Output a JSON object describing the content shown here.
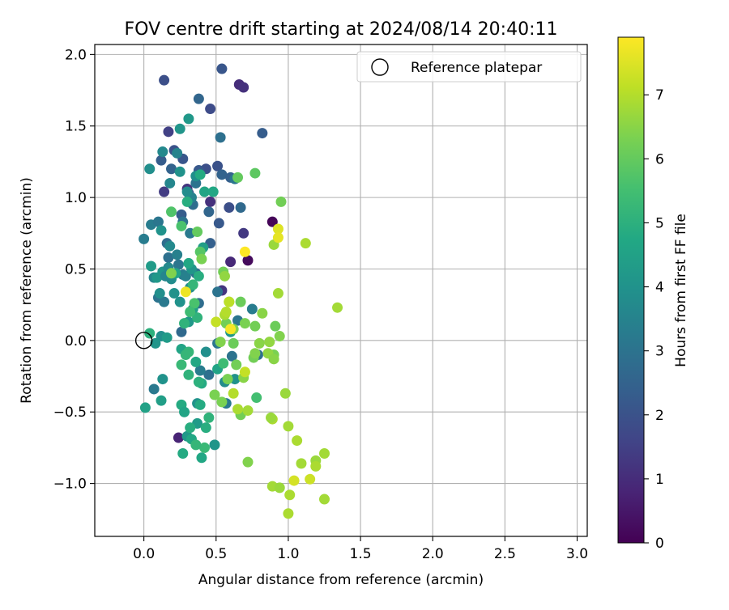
{
  "chart_data": {
    "type": "scatter",
    "title": "FOV centre drift starting at 2024/08/14 20:40:11",
    "xlabel": "Angular distance from reference (arcmin)",
    "ylabel": "Rotation from reference (arcmin)",
    "xlim": [
      -0.34,
      3.07
    ],
    "ylim": [
      -1.37,
      2.07
    ],
    "xticks": [
      0.0,
      0.5,
      1.0,
      1.5,
      2.0,
      2.5,
      3.0
    ],
    "xtick_labels": [
      "0.0",
      "0.5",
      "1.0",
      "1.5",
      "2.0",
      "2.5",
      "3.0"
    ],
    "yticks": [
      -1.0,
      -0.5,
      0.0,
      0.5,
      1.0,
      1.5,
      2.0
    ],
    "ytick_labels": [
      "−1.0",
      "−0.5",
      "0.0",
      "0.5",
      "1.0",
      "1.5",
      "2.0"
    ],
    "grid": true,
    "legend": {
      "placement": "top-right",
      "entries": [
        "Reference platepar"
      ]
    },
    "reference_point": {
      "x": 0.0,
      "y": 0.0
    },
    "colorbar": {
      "label": "Hours from first FF file",
      "range": [
        0,
        7.9
      ],
      "ticks": [
        0,
        1,
        2,
        3,
        4,
        5,
        6,
        7
      ],
      "tick_labels": [
        "0",
        "1",
        "2",
        "3",
        "4",
        "5",
        "6",
        "7"
      ],
      "colormap": "viridis"
    },
    "points": [
      {
        "x": 0.89,
        "y": 0.83,
        "h": 0.1
      },
      {
        "x": 0.72,
        "y": 0.56,
        "h": 0.2
      },
      {
        "x": 0.24,
        "y": -0.68,
        "h": 0.8
      },
      {
        "x": 0.66,
        "y": 1.79,
        "h": 1.0
      },
      {
        "x": 0.69,
        "y": 1.77,
        "h": 1.1
      },
      {
        "x": 0.6,
        "y": 0.55,
        "h": 0.9
      },
      {
        "x": 0.54,
        "y": 0.35,
        "h": 1.2
      },
      {
        "x": 0.46,
        "y": 0.97,
        "h": 1.1
      },
      {
        "x": 0.69,
        "y": 0.75,
        "h": 1.3
      },
      {
        "x": 0.14,
        "y": 1.04,
        "h": 1.4
      },
      {
        "x": 0.3,
        "y": 1.06,
        "h": 1.2
      },
      {
        "x": 0.17,
        "y": 1.46,
        "h": 1.5
      },
      {
        "x": 0.14,
        "y": 1.82,
        "h": 1.9
      },
      {
        "x": 0.54,
        "y": 1.9,
        "h": 2.1
      },
      {
        "x": 0.46,
        "y": 1.62,
        "h": 1.8
      },
      {
        "x": 0.82,
        "y": 1.45,
        "h": 2.3
      },
      {
        "x": 0.51,
        "y": 1.22,
        "h": 2.0
      },
      {
        "x": 0.43,
        "y": 1.2,
        "h": 1.9
      },
      {
        "x": 0.38,
        "y": 1.19,
        "h": 2.2
      },
      {
        "x": 0.27,
        "y": 1.27,
        "h": 2.1
      },
      {
        "x": 0.21,
        "y": 1.33,
        "h": 2.0
      },
      {
        "x": 0.19,
        "y": 1.2,
        "h": 2.5
      },
      {
        "x": 0.12,
        "y": 1.26,
        "h": 2.3
      },
      {
        "x": 0.31,
        "y": 1.03,
        "h": 2.2
      },
      {
        "x": 0.59,
        "y": 0.93,
        "h": 1.9
      },
      {
        "x": 0.26,
        "y": 0.88,
        "h": 2.3
      },
      {
        "x": 0.52,
        "y": 0.82,
        "h": 2.2
      },
      {
        "x": 0.46,
        "y": 0.68,
        "h": 2.4
      },
      {
        "x": 0.34,
        "y": 0.95,
        "h": 2.8
      },
      {
        "x": 0.45,
        "y": 0.9,
        "h": 2.6
      },
      {
        "x": 0.67,
        "y": 0.93,
        "h": 2.7
      },
      {
        "x": 0.38,
        "y": 1.69,
        "h": 2.6
      },
      {
        "x": 0.36,
        "y": 1.1,
        "h": 3.0
      },
      {
        "x": 0.53,
        "y": 1.42,
        "h": 2.9
      },
      {
        "x": 0.54,
        "y": 1.16,
        "h": 2.5
      },
      {
        "x": 0.6,
        "y": 1.14,
        "h": 2.4
      },
      {
        "x": 0.63,
        "y": 1.13,
        "h": 3.1
      },
      {
        "x": 0.16,
        "y": 0.68,
        "h": 2.8
      },
      {
        "x": 0.05,
        "y": 0.81,
        "h": 3.3
      },
      {
        "x": 0.1,
        "y": 0.83,
        "h": 3.1
      },
      {
        "x": 0.17,
        "y": 0.58,
        "h": 2.9
      },
      {
        "x": 0.23,
        "y": 0.6,
        "h": 3.4
      },
      {
        "x": 0.27,
        "y": 0.83,
        "h": 3.0
      },
      {
        "x": 0.32,
        "y": 0.75,
        "h": 3.2
      },
      {
        "x": 0.0,
        "y": 0.71,
        "h": 3.3
      },
      {
        "x": 0.1,
        "y": 0.3,
        "h": 3.0
      },
      {
        "x": 0.14,
        "y": 0.27,
        "h": 3.2
      },
      {
        "x": 0.27,
        "y": 0.46,
        "h": 3.3
      },
      {
        "x": 0.24,
        "y": 0.53,
        "h": 3.1
      },
      {
        "x": 0.29,
        "y": 0.45,
        "h": 3.4
      },
      {
        "x": 0.36,
        "y": 0.47,
        "h": 3.0
      },
      {
        "x": 0.38,
        "y": 0.26,
        "h": 2.8
      },
      {
        "x": 0.26,
        "y": 0.06,
        "h": 2.7
      },
      {
        "x": 0.07,
        "y": -0.34,
        "h": 3.2
      },
      {
        "x": 0.51,
        "y": 0.34,
        "h": 3.0
      },
      {
        "x": 0.45,
        "y": -0.24,
        "h": 2.9
      },
      {
        "x": 0.39,
        "y": -0.21,
        "h": 3.3
      },
      {
        "x": 0.57,
        "y": -0.44,
        "h": 3.2
      },
      {
        "x": 0.65,
        "y": 0.14,
        "h": 3.1
      },
      {
        "x": 0.75,
        "y": 0.22,
        "h": 3.3
      },
      {
        "x": 0.61,
        "y": -0.11,
        "h": 3.0
      },
      {
        "x": 0.51,
        "y": -0.02,
        "h": 3.1
      },
      {
        "x": 0.79,
        "y": -0.1,
        "h": 2.9
      },
      {
        "x": 0.33,
        "y": 1.0,
        "h": 3.5
      },
      {
        "x": 0.18,
        "y": 1.1,
        "h": 3.6
      },
      {
        "x": 0.13,
        "y": 1.32,
        "h": 3.7
      },
      {
        "x": 0.23,
        "y": 1.31,
        "h": 3.5
      },
      {
        "x": 0.04,
        "y": 1.2,
        "h": 3.9
      },
      {
        "x": 0.25,
        "y": 1.18,
        "h": 4.0
      },
      {
        "x": 0.31,
        "y": 1.55,
        "h": 4.2
      },
      {
        "x": 0.25,
        "y": 1.48,
        "h": 4.1
      },
      {
        "x": 0.36,
        "y": 1.15,
        "h": 3.9
      },
      {
        "x": 0.3,
        "y": 1.04,
        "h": 3.8
      },
      {
        "x": 0.18,
        "y": 0.66,
        "h": 3.7
      },
      {
        "x": 0.12,
        "y": 0.77,
        "h": 4.0
      },
      {
        "x": 0.07,
        "y": 0.44,
        "h": 3.6
      },
      {
        "x": 0.13,
        "y": 0.48,
        "h": 4.1
      },
      {
        "x": 0.19,
        "y": 0.43,
        "h": 3.8
      },
      {
        "x": 0.11,
        "y": 0.33,
        "h": 3.9
      },
      {
        "x": 0.17,
        "y": 0.51,
        "h": 3.7
      },
      {
        "x": 0.09,
        "y": 0.44,
        "h": 4.2
      },
      {
        "x": 0.21,
        "y": 0.33,
        "h": 4.0
      },
      {
        "x": 0.05,
        "y": 0.52,
        "h": 4.3
      },
      {
        "x": 0.15,
        "y": 0.45,
        "h": 3.6
      },
      {
        "x": 0.33,
        "y": 0.5,
        "h": 4.1
      },
      {
        "x": 0.32,
        "y": 0.37,
        "h": 3.8
      },
      {
        "x": 0.25,
        "y": 0.27,
        "h": 4.0
      },
      {
        "x": 0.34,
        "y": 0.22,
        "h": 4.4
      },
      {
        "x": 0.31,
        "y": 0.13,
        "h": 4.2
      },
      {
        "x": 0.12,
        "y": 0.03,
        "h": 3.9
      },
      {
        "x": 0.16,
        "y": 0.02,
        "h": 4.3
      },
      {
        "x": 0.08,
        "y": -0.02,
        "h": 4.1
      },
      {
        "x": 0.13,
        "y": -0.27,
        "h": 4.0
      },
      {
        "x": 0.12,
        "y": -0.42,
        "h": 4.4
      },
      {
        "x": 0.37,
        "y": -0.44,
        "h": 4.0
      },
      {
        "x": 0.3,
        "y": -0.67,
        "h": 4.2
      },
      {
        "x": 0.49,
        "y": -0.73,
        "h": 4.1
      },
      {
        "x": 0.43,
        "y": -0.08,
        "h": 3.9
      },
      {
        "x": 0.56,
        "y": -0.29,
        "h": 3.8
      },
      {
        "x": 0.37,
        "y": -0.58,
        "h": 4.3
      },
      {
        "x": 0.63,
        "y": -0.27,
        "h": 4.0
      },
      {
        "x": 0.6,
        "y": 0.06,
        "h": 4.2
      },
      {
        "x": 0.41,
        "y": 0.65,
        "h": 4.4
      },
      {
        "x": 0.42,
        "y": 1.04,
        "h": 4.6
      },
      {
        "x": 0.48,
        "y": 1.04,
        "h": 4.7
      },
      {
        "x": 0.39,
        "y": 1.16,
        "h": 4.8
      },
      {
        "x": 0.3,
        "y": 0.97,
        "h": 4.9
      },
      {
        "x": 0.22,
        "y": 0.47,
        "h": 4.6
      },
      {
        "x": 0.31,
        "y": 0.54,
        "h": 4.7
      },
      {
        "x": 0.38,
        "y": 0.45,
        "h": 4.9
      },
      {
        "x": 0.01,
        "y": -0.47,
        "h": 4.5
      },
      {
        "x": 0.26,
        "y": -0.45,
        "h": 4.8
      },
      {
        "x": 0.28,
        "y": -0.5,
        "h": 4.6
      },
      {
        "x": 0.32,
        "y": -0.61,
        "h": 4.9
      },
      {
        "x": 0.33,
        "y": -0.69,
        "h": 4.7
      },
      {
        "x": 0.39,
        "y": -0.45,
        "h": 4.8
      },
      {
        "x": 0.43,
        "y": -0.61,
        "h": 4.9
      },
      {
        "x": 0.27,
        "y": -0.79,
        "h": 4.8
      },
      {
        "x": 0.4,
        "y": -0.82,
        "h": 4.7
      },
      {
        "x": 0.26,
        "y": -0.06,
        "h": 4.6
      },
      {
        "x": 0.36,
        "y": -0.15,
        "h": 4.7
      },
      {
        "x": 0.4,
        "y": -0.3,
        "h": 4.8
      },
      {
        "x": 0.51,
        "y": -0.2,
        "h": 4.6
      },
      {
        "x": 0.04,
        "y": 0.05,
        "h": 5.0
      },
      {
        "x": 0.28,
        "y": 0.12,
        "h": 5.1
      },
      {
        "x": 0.34,
        "y": 0.39,
        "h": 5.2
      },
      {
        "x": 0.37,
        "y": 0.16,
        "h": 5.1
      },
      {
        "x": 0.38,
        "y": -0.29,
        "h": 5.0
      },
      {
        "x": 0.31,
        "y": -0.08,
        "h": 5.2
      },
      {
        "x": 0.26,
        "y": -0.17,
        "h": 5.3
      },
      {
        "x": 0.31,
        "y": -0.24,
        "h": 5.1
      },
      {
        "x": 0.29,
        "y": -0.1,
        "h": 5.2
      },
      {
        "x": 0.42,
        "y": -0.75,
        "h": 5.3
      },
      {
        "x": 0.36,
        "y": -0.73,
        "h": 5.2
      },
      {
        "x": 0.45,
        "y": -0.54,
        "h": 5.1
      },
      {
        "x": 0.78,
        "y": -0.4,
        "h": 5.5
      },
      {
        "x": 0.55,
        "y": -0.16,
        "h": 5.4
      },
      {
        "x": 0.35,
        "y": 0.26,
        "h": 5.6
      },
      {
        "x": 0.32,
        "y": 0.2,
        "h": 5.4
      },
      {
        "x": 0.26,
        "y": 0.8,
        "h": 5.6
      },
      {
        "x": 0.39,
        "y": 0.62,
        "h": 5.8
      },
      {
        "x": 0.19,
        "y": 0.9,
        "h": 5.7
      },
      {
        "x": 0.37,
        "y": 0.76,
        "h": 6.0
      },
      {
        "x": 0.65,
        "y": 1.14,
        "h": 6.0
      },
      {
        "x": 0.77,
        "y": 1.17,
        "h": 5.9
      },
      {
        "x": 0.95,
        "y": 0.97,
        "h": 6.2
      },
      {
        "x": 0.91,
        "y": 0.1,
        "h": 6.1
      },
      {
        "x": 0.19,
        "y": 0.47,
        "h": 6.4
      },
      {
        "x": 0.4,
        "y": 0.57,
        "h": 6.3
      },
      {
        "x": 0.55,
        "y": 0.48,
        "h": 6.2
      },
      {
        "x": 0.59,
        "y": 0.27,
        "h": 6.3
      },
      {
        "x": 0.67,
        "y": 0.27,
        "h": 6.1
      },
      {
        "x": 0.57,
        "y": 0.12,
        "h": 6.2
      },
      {
        "x": 0.62,
        "y": 0.08,
        "h": 6.4
      },
      {
        "x": 0.7,
        "y": 0.12,
        "h": 6.3
      },
      {
        "x": 0.77,
        "y": 0.1,
        "h": 6.2
      },
      {
        "x": 0.82,
        "y": 0.19,
        "h": 6.5
      },
      {
        "x": 0.62,
        "y": -0.02,
        "h": 6.1
      },
      {
        "x": 0.53,
        "y": -0.01,
        "h": 6.4
      },
      {
        "x": 0.64,
        "y": -0.17,
        "h": 6.2
      },
      {
        "x": 0.58,
        "y": -0.27,
        "h": 6.3
      },
      {
        "x": 0.69,
        "y": -0.26,
        "h": 6.5
      },
      {
        "x": 0.76,
        "y": -0.12,
        "h": 6.2
      },
      {
        "x": 0.9,
        "y": -0.1,
        "h": 6.3
      },
      {
        "x": 0.94,
        "y": 0.03,
        "h": 6.4
      },
      {
        "x": 0.86,
        "y": -0.09,
        "h": 6.6
      },
      {
        "x": 0.9,
        "y": -0.13,
        "h": 6.5
      },
      {
        "x": 0.77,
        "y": -0.09,
        "h": 6.4
      },
      {
        "x": 0.54,
        "y": -0.43,
        "h": 6.3
      },
      {
        "x": 0.67,
        "y": -0.52,
        "h": 6.2
      },
      {
        "x": 0.72,
        "y": -0.85,
        "h": 6.4
      },
      {
        "x": 0.87,
        "y": -0.01,
        "h": 6.6
      },
      {
        "x": 0.8,
        "y": -0.02,
        "h": 6.5
      },
      {
        "x": 0.49,
        "y": -0.38,
        "h": 6.3
      },
      {
        "x": 0.56,
        "y": 0.45,
        "h": 6.6
      },
      {
        "x": 0.9,
        "y": 0.67,
        "h": 6.7
      },
      {
        "x": 1.12,
        "y": 0.68,
        "h": 6.9
      },
      {
        "x": 0.93,
        "y": 0.33,
        "h": 6.8
      },
      {
        "x": 0.56,
        "y": 0.18,
        "h": 6.9
      },
      {
        "x": 1.34,
        "y": 0.23,
        "h": 6.8
      },
      {
        "x": 0.98,
        "y": -0.37,
        "h": 6.7
      },
      {
        "x": 0.89,
        "y": -0.55,
        "h": 6.9
      },
      {
        "x": 1.0,
        "y": -0.6,
        "h": 6.8
      },
      {
        "x": 1.06,
        "y": -0.7,
        "h": 6.9
      },
      {
        "x": 1.25,
        "y": -0.79,
        "h": 6.8
      },
      {
        "x": 1.19,
        "y": -0.84,
        "h": 6.7
      },
      {
        "x": 1.19,
        "y": -0.88,
        "h": 6.9
      },
      {
        "x": 1.09,
        "y": -0.86,
        "h": 6.8
      },
      {
        "x": 1.01,
        "y": -1.08,
        "h": 6.9
      },
      {
        "x": 0.89,
        "y": -1.02,
        "h": 6.8
      },
      {
        "x": 0.94,
        "y": -1.03,
        "h": 6.7
      },
      {
        "x": 1.0,
        "y": -1.21,
        "h": 6.9
      },
      {
        "x": 1.25,
        "y": -1.11,
        "h": 6.8
      },
      {
        "x": 0.65,
        "y": -0.48,
        "h": 6.9
      },
      {
        "x": 0.88,
        "y": -0.54,
        "h": 6.7
      },
      {
        "x": 0.72,
        "y": -0.49,
        "h": 6.8
      },
      {
        "x": 0.57,
        "y": 0.2,
        "h": 7.0
      },
      {
        "x": 0.5,
        "y": 0.13,
        "h": 7.2
      },
      {
        "x": 0.59,
        "y": 0.27,
        "h": 7.1
      },
      {
        "x": 0.62,
        "y": -0.37,
        "h": 7.0
      },
      {
        "x": 0.7,
        "y": -0.22,
        "h": 7.2
      },
      {
        "x": 1.15,
        "y": -0.97,
        "h": 7.3
      },
      {
        "x": 1.04,
        "y": -0.98,
        "h": 7.4
      },
      {
        "x": 0.93,
        "y": 0.78,
        "h": 7.5
      },
      {
        "x": 0.93,
        "y": 0.72,
        "h": 7.6
      },
      {
        "x": 0.29,
        "y": 0.34,
        "h": 7.7
      },
      {
        "x": 0.6,
        "y": 0.08,
        "h": 7.8
      },
      {
        "x": 0.7,
        "y": 0.62,
        "h": 7.9
      }
    ]
  }
}
